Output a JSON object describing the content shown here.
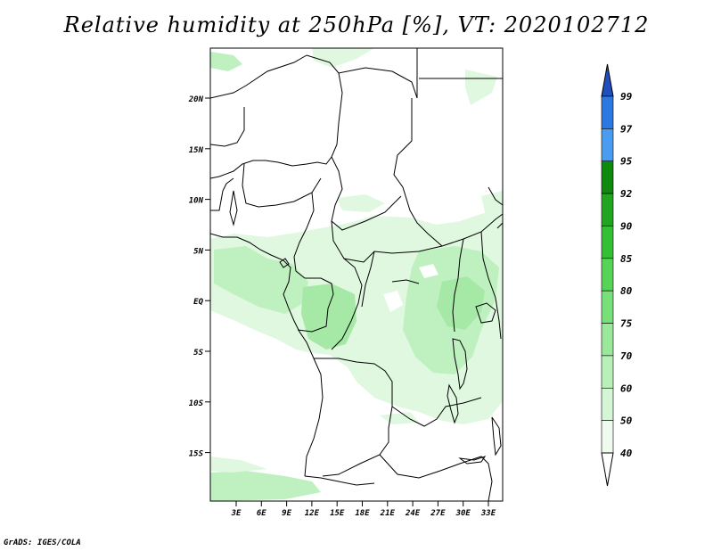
{
  "title": "Relative humidity at 250hPa [%], VT: 2020102712",
  "credit": "GrADS: IGES/COLA",
  "axes": {
    "lat_labels": [
      "20N",
      "15N",
      "10N",
      "5N",
      "EQ",
      "5S",
      "10S",
      "15S"
    ],
    "lon_labels": [
      "3E",
      "6E",
      "9E",
      "12E",
      "15E",
      "18E",
      "21E",
      "24E",
      "27E",
      "30E",
      "33E"
    ]
  },
  "colorbar": {
    "levels": [
      "99",
      "97",
      "95",
      "92",
      "90",
      "85",
      "80",
      "75",
      "70",
      "60",
      "50",
      "40"
    ],
    "colors": [
      "#1f5fcf",
      "#2a78e0",
      "#4a9cf0",
      "#0f8a0f",
      "#22a622",
      "#35bf35",
      "#55d455",
      "#78e078",
      "#9ae89a",
      "#b8f0b8",
      "#d4f6d4",
      "#eefbee"
    ],
    "top_arrow_color": "#1d4fbf",
    "bottom_arrow_color": "#ffffff"
  },
  "shading_colors": {
    "light": "#dff8df",
    "medium": "#bff0bf",
    "strong": "#a6e8a6"
  }
}
